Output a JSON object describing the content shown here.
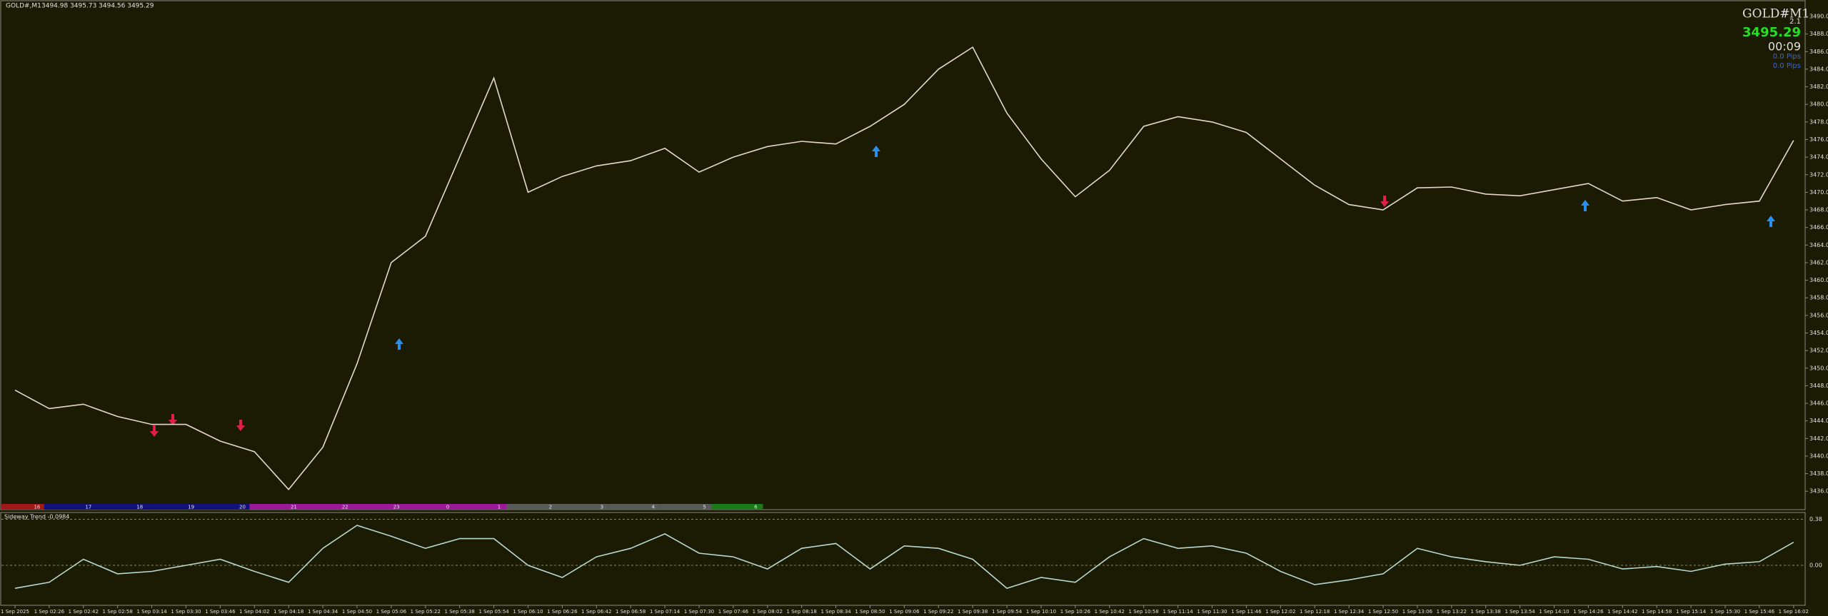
{
  "chart_data": {
    "type": "line",
    "title": "GOLD#,M1",
    "subtitle": "3494.98 3495.73 3494.56 3495.29",
    "categories": [
      "1 Sep 2025",
      "1 Sep 02:26",
      "1 Sep 02:42",
      "1 Sep 02:58",
      "1 Sep 03:14",
      "1 Sep 03:30",
      "1 Sep 03:46",
      "1 Sep 04:02",
      "1 Sep 04:18",
      "1 Sep 04:34",
      "1 Sep 04:50",
      "1 Sep 05:06",
      "1 Sep 05:22",
      "1 Sep 05:38",
      "1 Sep 05:54",
      "1 Sep 06:10",
      "1 Sep 06:26",
      "1 Sep 06:42",
      "1 Sep 06:58",
      "1 Sep 07:14",
      "1 Sep 07:30",
      "1 Sep 07:46",
      "1 Sep 08:02",
      "1 Sep 08:18",
      "1 Sep 08:34",
      "1 Sep 08:50",
      "1 Sep 09:06",
      "1 Sep 09:22",
      "1 Sep 09:38",
      "1 Sep 09:54",
      "1 Sep 10:10",
      "1 Sep 10:26",
      "1 Sep 10:42",
      "1 Sep 10:58",
      "1 Sep 11:14",
      "1 Sep 11:30",
      "1 Sep 11:46",
      "1 Sep 12:02",
      "1 Sep 12:18",
      "1 Sep 12:34",
      "1 Sep 12:50",
      "1 Sep 13:06",
      "1 Sep 13:22",
      "1 Sep 13:38",
      "1 Sep 13:54",
      "1 Sep 14:10",
      "1 Sep 14:26",
      "1 Sep 14:42",
      "1 Sep 14:58",
      "1 Sep 15:14",
      "1 Sep 15:30",
      "1 Sep 15:46",
      "1 Sep 16:02"
    ],
    "values": [
      3447.5,
      3445.4,
      3445.9,
      3444.5,
      3443.6,
      3443.6,
      3441.7,
      3440.5,
      3436.2,
      3441.0,
      3450.5,
      3462.0,
      3465.0,
      3474.0,
      3483.0,
      3470.0,
      3471.8,
      3473.0,
      3473.6,
      3475.0,
      3472.3,
      3474.0,
      3475.2,
      3475.8,
      3475.5,
      3477.5,
      3480.0,
      3484.0,
      3486.5,
      3479.0,
      3473.8,
      3469.5,
      3472.5,
      3477.5,
      3478.6,
      3478.0,
      3476.8,
      3473.8,
      3470.8,
      3468.6,
      3468.0,
      3470.5,
      3470.6,
      3469.8,
      3469.6,
      3470.3,
      3471.0,
      3469.0,
      3469.4,
      3468.0,
      3468.6,
      3469.0,
      3475.9
    ],
    "color": "#e6d6d0",
    "ylim": [
      3434.07,
      3491.87
    ],
    "yticks": [
      {
        "value": 3436,
        "label": "3436.00"
      },
      {
        "value": 3438,
        "label": "3438.00"
      },
      {
        "value": 3440,
        "label": "3440.00"
      },
      {
        "value": 3442,
        "label": "3442.00"
      },
      {
        "value": 3444,
        "label": "3444.00"
      },
      {
        "value": 3446,
        "label": "3446.00"
      },
      {
        "value": 3448,
        "label": "3448.00"
      },
      {
        "value": 3450,
        "label": "3450.00"
      },
      {
        "value": 3452,
        "label": "3452.00"
      },
      {
        "value": 3454,
        "label": "3454.00"
      },
      {
        "value": 3456,
        "label": "3456.00"
      },
      {
        "value": 3458,
        "label": "3458.00"
      },
      {
        "value": 3460,
        "label": "3460.00"
      },
      {
        "value": 3462,
        "label": "3462.00"
      },
      {
        "value": 3464,
        "label": "3464.00"
      },
      {
        "value": 3466,
        "label": "3466.00"
      },
      {
        "value": 3468,
        "label": "3468.00"
      },
      {
        "value": 3470,
        "label": "3470.00"
      },
      {
        "value": 3472,
        "label": "3472.00"
      },
      {
        "value": 3474,
        "label": "3474.00"
      },
      {
        "value": 3476,
        "label": "3476.00"
      },
      {
        "value": 3478,
        "label": "3478.00"
      },
      {
        "value": 3480,
        "label": "3480.00"
      },
      {
        "value": 3482,
        "label": "3482.00"
      },
      {
        "value": 3484,
        "label": "3484.00"
      },
      {
        "value": 3486,
        "label": "3486.00"
      },
      {
        "value": 3488,
        "label": "3488.00"
      },
      {
        "value": 3490,
        "label": "3490.00"
      }
    ],
    "grid": false,
    "panel": {
      "symbol": "GOLD#",
      "timeframe": "M1",
      "spread": "2.1",
      "price": "3495.29",
      "timer": "00:09",
      "pips": [
        "0.0 Pips",
        "0.0 Pips"
      ]
    },
    "hour_bar": {
      "labels": [
        "16",
        "17",
        "18",
        "19",
        "20",
        "21",
        "22",
        "23",
        "0",
        "1",
        "2",
        "3",
        "4",
        "5",
        "6"
      ],
      "colors": [
        "#a01818",
        "#12127a",
        "#12127a",
        "#12127a",
        "#12127a",
        "#9a1a9a",
        "#9a1a9a",
        "#9a1a9a",
        "#9a1a9a",
        "#9a1a9a",
        "#5a5a5a",
        "#5a5a5a",
        "#5a5a5a",
        "#5a5a5a",
        "#1a7a1a"
      ]
    },
    "indicator": {
      "name": "Sideway Trend -0.0984",
      "color": "#b8d8d0",
      "ylim": [
        -0.33,
        0.43
      ],
      "yticks": [
        {
          "value": 0.38,
          "label": "0.38"
        },
        {
          "value": 0,
          "label": "0.00"
        }
      ],
      "values": [
        -0.19,
        -0.14,
        0.05,
        -0.07,
        -0.05,
        0,
        0.05,
        -0.05,
        -0.14,
        0.14,
        0.33,
        0.24,
        0.14,
        0.22,
        0.22,
        0,
        -0.1,
        0.07,
        0.14,
        0.26,
        0.1,
        0.07,
        -0.03,
        0.14,
        0.18,
        -0.03,
        0.16,
        0.14,
        0.05,
        -0.19,
        -0.1,
        -0.14,
        0.07,
        0.22,
        0.14,
        0.16,
        0.1,
        -0.05,
        -0.16,
        -0.12,
        -0.07,
        0.14,
        0.07,
        0.03,
        0,
        0.07,
        0.05,
        -0.03,
        -0.01,
        -0.05,
        0.01,
        0.03,
        0.19
      ]
    }
  }
}
